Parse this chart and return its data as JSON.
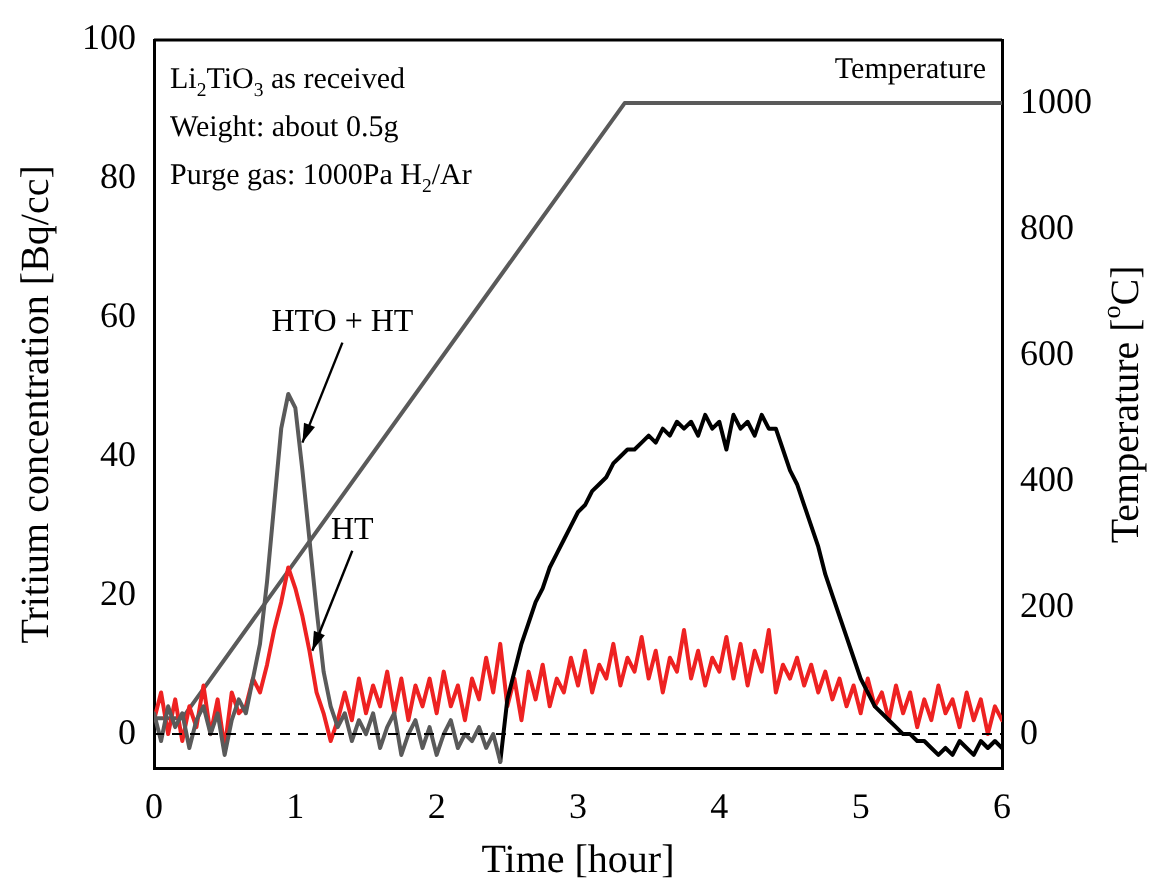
{
  "chart_data": {
    "type": "line",
    "xlabel": "Time [hour]",
    "ylabel": "Tritium concentration [Bq/cc]",
    "y2label": "Temperature [$^{o}$C]",
    "xlim": [
      0,
      6
    ],
    "xticks": [
      0,
      1,
      2,
      3,
      4,
      5,
      6
    ],
    "ylim": [
      -5,
      100
    ],
    "yticks": [
      0,
      20,
      40,
      60,
      80,
      100
    ],
    "y2lim": [
      -55,
      1100
    ],
    "y2ticks": [
      0,
      200,
      400,
      600,
      800,
      1000
    ],
    "grid": false,
    "legend": false,
    "marker": "none",
    "series": [
      {
        "color": "#5a5a5a",
        "x": [
          0,
          0.05,
          0.1,
          0.15,
          0.2,
          0.25,
          0.3,
          0.35,
          0.4,
          0.45,
          0.5,
          0.55,
          0.6,
          0.65,
          0.7,
          0.75,
          0.8,
          0.85,
          0.9,
          0.95,
          1.0,
          1.05,
          1.1,
          1.15,
          1.2,
          1.25,
          1.3,
          1.35,
          1.4,
          1.45,
          1.5,
          1.55,
          1.6,
          1.65,
          1.7,
          1.75,
          1.8,
          1.85,
          1.9,
          1.95,
          2.0,
          2.05,
          2.1,
          2.15,
          2.2,
          2.25,
          2.3,
          2.35,
          2.4,
          2.45
        ],
        "values": [
          3,
          -1,
          4,
          1,
          3,
          -2,
          2,
          4,
          0,
          3,
          -3,
          2,
          5,
          3,
          8,
          13,
          22,
          33,
          44,
          49,
          47,
          38,
          28,
          18,
          9,
          4,
          1,
          3,
          -1,
          2,
          0,
          3,
          -2,
          1,
          3,
          -3,
          0,
          2,
          -2,
          1,
          -3,
          0,
          2,
          -2,
          0,
          -1,
          1,
          -2,
          0,
          -4
        ]
      },
      {
        "color": "#000000",
        "x": [
          2.45,
          2.5,
          2.55,
          2.6,
          2.65,
          2.7,
          2.75,
          2.8,
          2.85,
          2.9,
          2.95,
          3.0,
          3.05,
          3.1,
          3.15,
          3.2,
          3.25,
          3.3,
          3.35,
          3.4,
          3.45,
          3.5,
          3.55,
          3.6,
          3.65,
          3.7,
          3.75,
          3.8,
          3.85,
          3.9,
          3.95,
          4.0,
          4.05,
          4.1,
          4.15,
          4.2,
          4.25,
          4.3,
          4.35,
          4.4,
          4.45,
          4.5,
          4.55,
          4.6,
          4.65,
          4.7,
          4.75,
          4.8,
          4.85,
          4.9,
          4.95,
          5.0,
          5.05,
          5.1,
          5.15,
          5.2,
          5.25,
          5.3,
          5.35,
          5.4,
          5.45,
          5.5,
          5.55,
          5.6,
          5.65,
          5.7,
          5.75,
          5.8,
          5.85,
          5.9,
          5.95,
          6.0
        ],
        "values": [
          -4,
          5,
          9,
          13,
          16,
          19,
          21,
          24,
          26,
          28,
          30,
          32,
          33,
          35,
          36,
          37,
          39,
          40,
          41,
          41,
          42,
          43,
          42,
          44,
          43,
          45,
          44,
          45,
          43,
          46,
          44,
          45,
          41,
          46,
          44,
          45,
          43,
          46,
          44,
          44,
          41,
          38,
          36,
          33,
          30,
          27,
          23,
          20,
          17,
          14,
          11,
          8,
          6,
          4,
          3,
          2,
          1,
          0,
          0,
          -1,
          -1,
          -2,
          -3,
          -2,
          -3,
          -1,
          -2,
          -3,
          -1,
          -2,
          -1,
          -2
        ]
      },
      {
        "color": "#ee2222",
        "x": [
          0,
          0.05,
          0.1,
          0.15,
          0.2,
          0.25,
          0.3,
          0.35,
          0.4,
          0.45,
          0.5,
          0.55,
          0.6,
          0.65,
          0.7,
          0.75,
          0.8,
          0.85,
          0.9,
          0.95,
          1.0,
          1.05,
          1.1,
          1.15,
          1.2,
          1.25,
          1.3,
          1.35,
          1.4,
          1.45,
          1.5,
          1.55,
          1.6,
          1.65,
          1.7,
          1.75,
          1.8,
          1.85,
          1.9,
          1.95,
          2.0,
          2.05,
          2.1,
          2.15,
          2.2,
          2.25,
          2.3,
          2.35,
          2.4,
          2.45,
          2.5,
          2.55,
          2.6,
          2.65,
          2.7,
          2.75,
          2.8,
          2.85,
          2.9,
          2.95,
          3.0,
          3.05,
          3.1,
          3.15,
          3.2,
          3.25,
          3.3,
          3.35,
          3.4,
          3.45,
          3.5,
          3.55,
          3.6,
          3.65,
          3.7,
          3.75,
          3.8,
          3.85,
          3.9,
          3.95,
          4.0,
          4.05,
          4.1,
          4.15,
          4.2,
          4.25,
          4.3,
          4.35,
          4.4,
          4.45,
          4.5,
          4.55,
          4.6,
          4.65,
          4.7,
          4.75,
          4.8,
          4.85,
          4.9,
          4.95,
          5.0,
          5.05,
          5.1,
          5.15,
          5.2,
          5.25,
          5.3,
          5.35,
          5.4,
          5.45,
          5.5,
          5.55,
          5.6,
          5.65,
          5.7,
          5.75,
          5.8,
          5.85,
          5.9,
          5.95,
          6.0
        ],
        "values": [
          2,
          6,
          0,
          5,
          -1,
          4,
          1,
          7,
          0,
          5,
          -2,
          6,
          3,
          4,
          8,
          6,
          10,
          15,
          19,
          24,
          21,
          17,
          12,
          6,
          3,
          -1,
          2,
          6,
          2,
          8,
          3,
          7,
          4,
          9,
          3,
          8,
          2,
          7,
          4,
          8,
          3,
          9,
          4,
          7,
          2,
          8,
          5,
          11,
          6,
          13,
          4,
          8,
          2,
          9,
          5,
          10,
          4,
          8,
          6,
          11,
          7,
          12,
          6,
          10,
          8,
          13,
          7,
          11,
          9,
          14,
          8,
          12,
          6,
          11,
          9,
          15,
          8,
          12,
          7,
          11,
          9,
          14,
          8,
          13,
          7,
          12,
          9,
          15,
          6,
          10,
          8,
          11,
          7,
          10,
          6,
          9,
          5,
          8,
          4,
          7,
          3,
          8,
          4,
          6,
          2,
          7,
          3,
          6,
          1,
          5,
          2,
          7,
          3,
          5,
          1,
          6,
          2,
          5,
          0,
          4,
          2
        ]
      },
      {
        "name": "Temperature",
        "color": "#5a5a5a",
        "axis": "y2",
        "x": [
          0,
          0.2,
          3.33,
          6
        ],
        "values": [
          25,
          25,
          1000,
          1000
        ]
      }
    ],
    "ref_lines": [
      {
        "axis": "y",
        "value": 0,
        "line_style": "dashed",
        "color": "#000000"
      }
    ],
    "annotations": [
      "Li$_{2}$TiO$_{3}$ as received",
      "Weight: about 0.5g",
      "Purge gas: 1000Pa H$_{2}$/Ar",
      {
        "text": "HTO + HT",
        "x": 1.05,
        "y": 42
      },
      {
        "text": "HT",
        "x": 1.12,
        "y": 12
      }
    ]
  }
}
